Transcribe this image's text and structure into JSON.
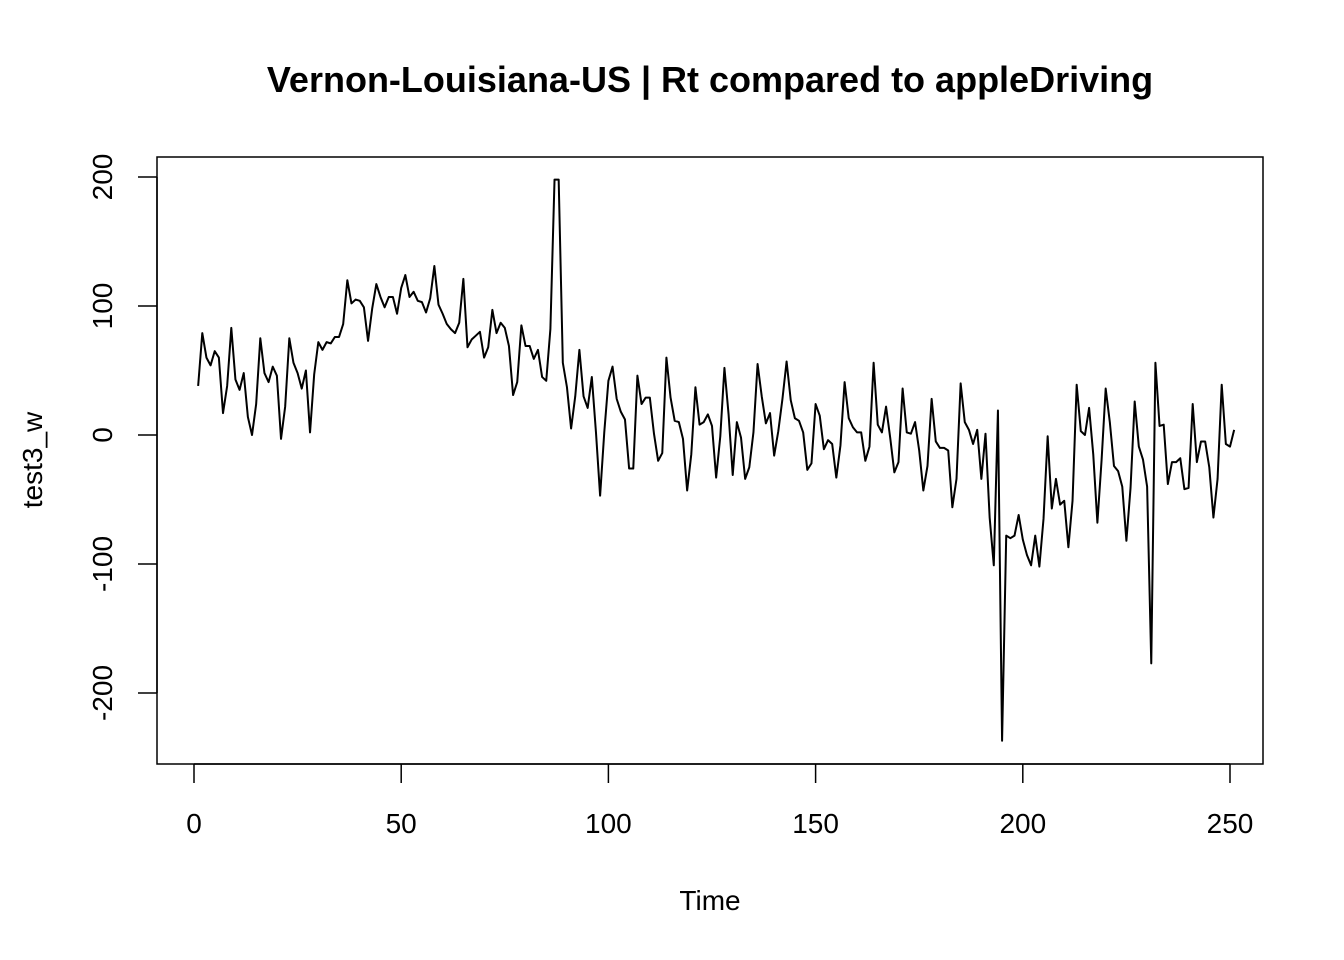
{
  "chart_data": {
    "type": "line",
    "title": "Vernon-Louisiana-US | Rt compared to appleDriving",
    "xlabel": "Time",
    "ylabel": "test3_w",
    "xlim": [
      1,
      248
    ],
    "ylim": [
      -237,
      199
    ],
    "x_ticks": [
      0,
      50,
      100,
      150,
      200,
      250
    ],
    "y_ticks": [
      -200,
      -100,
      0,
      100,
      200
    ],
    "grid": false,
    "line_color": "#000000",
    "series": [
      {
        "x_start": 1,
        "values": [
          38,
          79,
          60,
          54,
          65,
          60,
          17,
          38,
          83,
          43,
          35,
          48,
          14,
          0,
          24,
          75,
          48,
          41,
          53,
          46,
          -3,
          22,
          75,
          56,
          48,
          36,
          50,
          2,
          47,
          72,
          66,
          72,
          71,
          76,
          76,
          86,
          120,
          102,
          105,
          104,
          99,
          73,
          98,
          117,
          107,
          99,
          107,
          107,
          94,
          114,
          124,
          107,
          111,
          104,
          103,
          95,
          106,
          131,
          101,
          94,
          86,
          82,
          79,
          87,
          121,
          68,
          74,
          77,
          80,
          60,
          68,
          97,
          79,
          87,
          83,
          69,
          31,
          41,
          85,
          69,
          69,
          59,
          66,
          45,
          42,
          82,
          198,
          198,
          56,
          37,
          5,
          30,
          66,
          30,
          21,
          45,
          2,
          -47,
          2,
          42,
          53,
          28,
          18,
          12,
          -26,
          -26,
          46,
          24,
          29,
          29,
          1,
          -20,
          -14,
          60,
          29,
          11,
          10,
          -3,
          -43,
          -15,
          37,
          8,
          10,
          16,
          7,
          -33,
          -1,
          52,
          16,
          -31,
          10,
          -2,
          -34,
          -25,
          2,
          55,
          30,
          9,
          17,
          -16,
          3,
          28,
          57,
          27,
          13,
          11,
          2,
          -27,
          -22,
          24,
          15,
          -11,
          -4,
          -7,
          -33,
          -8,
          41,
          13,
          6,
          2,
          2,
          -20,
          -9,
          56,
          8,
          2,
          22,
          -2,
          -29,
          -21,
          36,
          2,
          1,
          10,
          -12,
          -43,
          -24,
          28,
          -5,
          -10,
          -10,
          -12,
          -56,
          -34,
          40,
          10,
          4,
          -7,
          4,
          -34,
          1,
          -64,
          -101,
          19,
          -237,
          -78,
          -80,
          -78,
          -62,
          -81,
          -93,
          -101,
          -78,
          -102,
          -65,
          -1,
          -57,
          -34,
          -54,
          -51,
          -87,
          -51,
          39,
          3,
          0,
          21,
          -15,
          -68,
          -20,
          36,
          10,
          -24,
          -28,
          -40,
          -82,
          -41,
          26,
          -9,
          -19,
          -40,
          -177,
          56,
          7,
          8,
          -38,
          -21,
          -21,
          -18,
          -42,
          -41,
          24,
          -21,
          -5,
          -5,
          -25,
          -64,
          -34,
          39,
          -7,
          -9,
          4
        ]
      }
    ]
  }
}
